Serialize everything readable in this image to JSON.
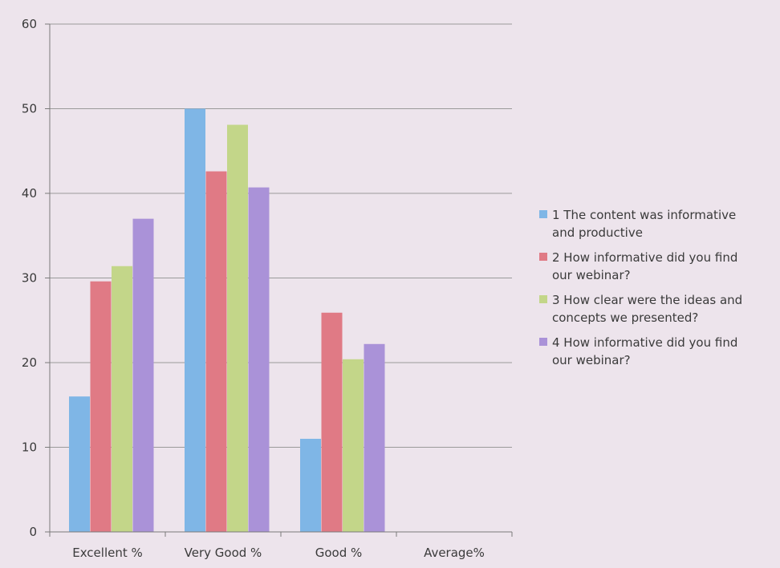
{
  "chart_data": {
    "type": "bar",
    "categories": [
      "Excellent %",
      "Very Good %",
      "Good %",
      "Average%"
    ],
    "series": [
      {
        "name": "1 The content was informative and productive",
        "values": [
          16,
          50,
          11,
          0
        ],
        "color": "#7fb6e6"
      },
      {
        "name": "2 How informative did you find our webinar?",
        "values": [
          29.6,
          42.6,
          25.9,
          0
        ],
        "color": "#e07a85"
      },
      {
        "name": "3 How clear were the ideas and concepts we presented?",
        "values": [
          31.4,
          48.1,
          20.4,
          0
        ],
        "color": "#c3d689"
      },
      {
        "name": "4 How informative did you find our webinar?",
        "values": [
          37,
          40.7,
          22.2,
          0
        ],
        "color": "#aa92d8"
      }
    ],
    "legend_lines": [
      [
        "1 The content was informative",
        "and productive"
      ],
      [
        "2 How informative did you find",
        "our webinar?"
      ],
      [
        "3 How clear were the ideas and",
        "concepts we presented?"
      ],
      [
        "4 How informative did you find",
        "our webinar?"
      ]
    ],
    "y_ticks": [
      "0",
      "10",
      "20",
      "30",
      "40",
      "50",
      "60"
    ],
    "ylim": [
      0,
      60
    ],
    "grid": true,
    "legend_position": "right"
  }
}
